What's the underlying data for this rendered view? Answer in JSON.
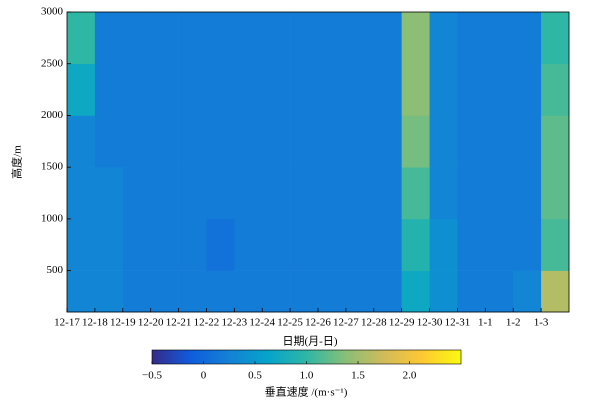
{
  "chart_data": {
    "type": "heatmap",
    "ylabel": "高度/m",
    "xlabel": "日期(月-日)",
    "categories": [
      "12-17",
      "12-18",
      "12-19",
      "12-20",
      "12-21",
      "12-22",
      "12-23",
      "12-24",
      "12-25",
      "12-26",
      "12-27",
      "12-28",
      "12-29",
      "12-30",
      "12-31",
      "1-1",
      "1-2",
      "1-3"
    ],
    "ybins": [
      100,
      500,
      1000,
      1500,
      2000,
      2500,
      3000
    ],
    "ylim": [
      100,
      3000
    ],
    "yticks": [
      500,
      1000,
      1500,
      2000,
      2500,
      3000
    ],
    "values": [
      [
        0.3,
        0.3,
        0.2,
        0.2,
        0.2,
        0.2,
        0.2,
        0.2,
        0.2,
        0.2,
        0.2,
        0.2,
        0.7,
        0.4,
        0.2,
        0.2,
        0.3,
        1.6
      ],
      [
        0.3,
        0.3,
        0.2,
        0.2,
        0.2,
        0.1,
        0.2,
        0.2,
        0.2,
        0.2,
        0.2,
        0.2,
        0.9,
        0.4,
        0.2,
        0.2,
        0.2,
        1.1
      ],
      [
        0.3,
        0.3,
        0.2,
        0.2,
        0.2,
        0.2,
        0.2,
        0.2,
        0.2,
        0.2,
        0.2,
        0.2,
        1.1,
        0.3,
        0.2,
        0.2,
        0.2,
        1.2
      ],
      [
        0.3,
        0.2,
        0.2,
        0.2,
        0.2,
        0.2,
        0.2,
        0.2,
        0.2,
        0.2,
        0.2,
        0.2,
        1.3,
        0.3,
        0.2,
        0.2,
        0.2,
        1.2
      ],
      [
        0.7,
        0.2,
        0.2,
        0.2,
        0.2,
        0.2,
        0.2,
        0.2,
        0.2,
        0.2,
        0.2,
        0.2,
        1.4,
        0.3,
        0.2,
        0.2,
        0.2,
        1.1
      ],
      [
        1.0,
        0.2,
        0.2,
        0.2,
        0.2,
        0.2,
        0.2,
        0.2,
        0.2,
        0.2,
        0.2,
        0.2,
        1.4,
        0.3,
        0.2,
        0.2,
        0.2,
        1.0
      ]
    ],
    "colorbar_label": "垂直速度 /(m·s⁻¹)",
    "clim": [
      -0.5,
      2.5
    ],
    "cticks": [
      {
        "value": -0.5,
        "label": "−0.5"
      },
      0,
      0.5,
      {
        "value": 1,
        "label": "1.0"
      },
      1.5,
      {
        "value": 2,
        "label": "2.0"
      }
    ],
    "colormap": [
      "#352a87",
      "#0f5cdd",
      "#1481d6",
      "#06a4ca",
      "#2eb7a4",
      "#87bf77",
      "#d1bb59",
      "#fec832",
      "#f9fb0e"
    ]
  }
}
